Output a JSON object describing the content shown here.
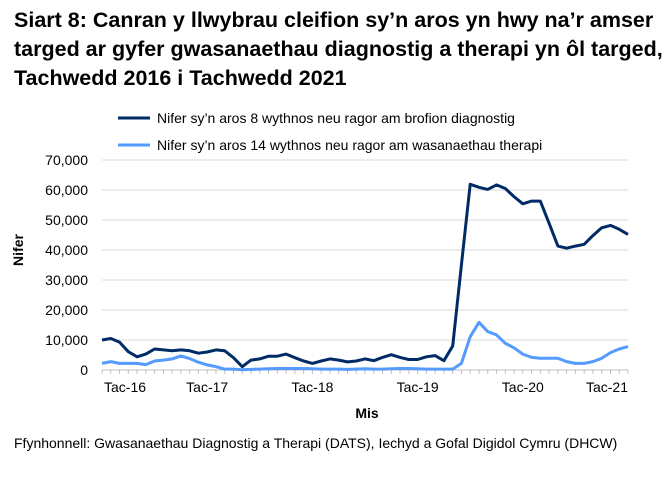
{
  "chart_data": {
    "type": "line",
    "title": "Siart 8: Canran y llwybrau cleifion sy’n aros yn hwy na’r amser targed ar gyfer gwasanaethau diagnostig a therapi yn ôl targed, Tachwedd 2016 i Tachwedd 2021",
    "xlabel": "Mis",
    "ylabel": "Nifer",
    "ylim": [
      0,
      70000
    ],
    "yticks": [
      "0",
      "10,000",
      "20,000",
      "30,000",
      "40,000",
      "50,000",
      "60,000",
      "70,000"
    ],
    "ytick_values": [
      0,
      10000,
      20000,
      30000,
      40000,
      50000,
      60000,
      70000
    ],
    "xtick_labels": [
      "Tac-16",
      "Tac-17",
      "Tac-18",
      "Tac-19",
      "Tac-20",
      "Tac-21"
    ],
    "xtick_indices": [
      0,
      12,
      24,
      36,
      48,
      60
    ],
    "x_range": [
      "Tac-16",
      "Tac-21"
    ],
    "grid": "horizontal",
    "legend": "top",
    "series": [
      {
        "name": "Nifer sy’n aros 8 wythnos neu ragor am brofion diagnostig",
        "color": "#002B66",
        "values": [
          10000,
          10500,
          9300,
          6100,
          4400,
          5300,
          7000,
          6700,
          6400,
          6700,
          6400,
          5600,
          6000,
          6700,
          6400,
          4100,
          1100,
          3300,
          3700,
          4600,
          4600,
          5300,
          4100,
          3000,
          2200,
          3000,
          3700,
          3300,
          2700,
          3000,
          3700,
          3100,
          4200,
          5100,
          4200,
          3500,
          3500,
          4400,
          4800,
          3100,
          8000,
          35000,
          61900,
          60900,
          60200,
          61700,
          60500,
          57800,
          55400,
          56300,
          56300,
          48900,
          41300,
          40600,
          41300,
          41900,
          44800,
          47400,
          48200,
          46900,
          45200
        ]
      },
      {
        "name": "Nifer sy’n aros 14 wythnos neu ragor am wasanaethau therapi",
        "color": "#559BFF",
        "values": [
          2200,
          2800,
          2200,
          2200,
          2200,
          1800,
          3000,
          3300,
          3700,
          4700,
          3800,
          2600,
          1700,
          1100,
          300,
          300,
          100,
          200,
          300,
          400,
          500,
          500,
          500,
          500,
          400,
          300,
          300,
          300,
          200,
          300,
          400,
          300,
          300,
          400,
          500,
          500,
          400,
          300,
          300,
          300,
          300,
          2200,
          11100,
          15900,
          12800,
          11700,
          8900,
          7400,
          5300,
          4200,
          3900,
          3900,
          3900,
          2800,
          2200,
          2200,
          2800,
          3900,
          5800,
          7000,
          7800
        ]
      }
    ]
  },
  "source": "Ffynhonnell: Gwasanaethau Diagnostig a Therapi (DATS), Iechyd a Gofal Digidol Cymru (DHCW)"
}
